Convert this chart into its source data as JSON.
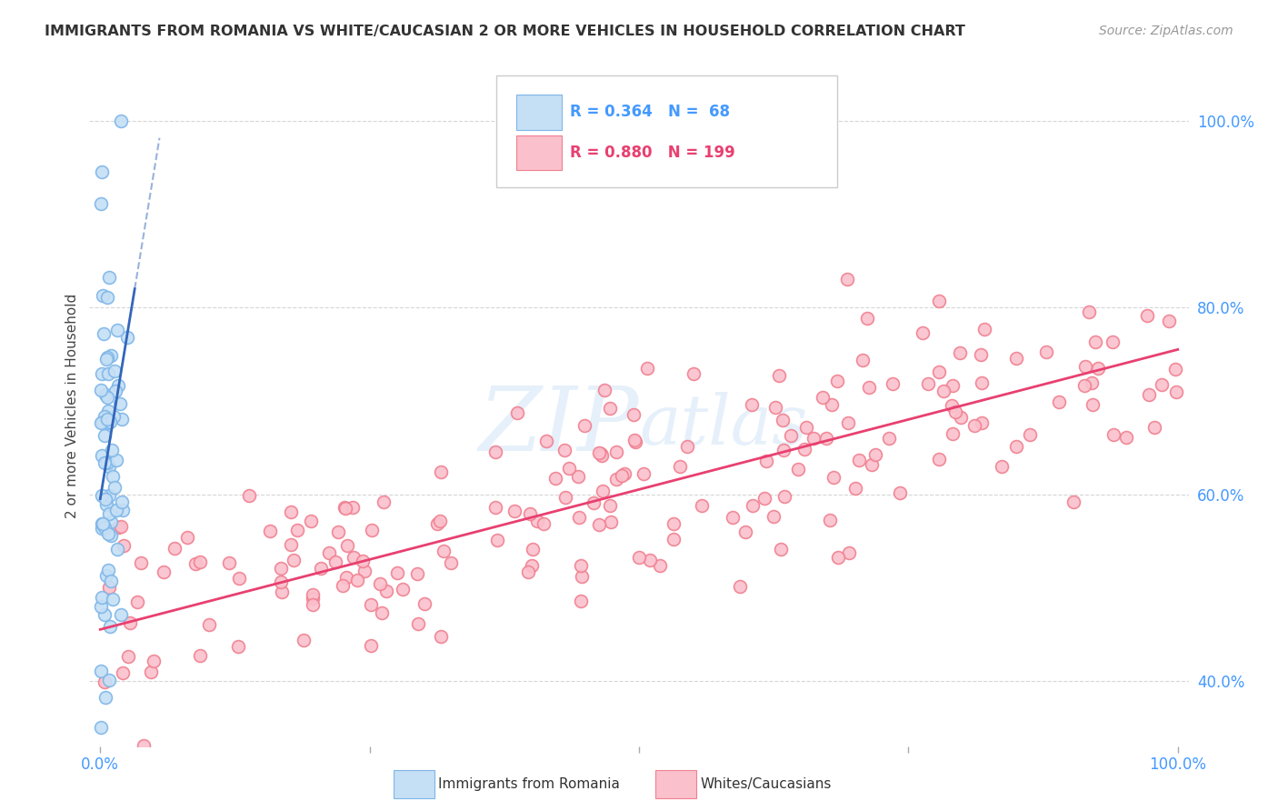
{
  "title": "IMMIGRANTS FROM ROMANIA VS WHITE/CAUCASIAN 2 OR MORE VEHICLES IN HOUSEHOLD CORRELATION CHART",
  "source": "Source: ZipAtlas.com",
  "ylabel": "2 or more Vehicles in Household",
  "watermark": "ZIPAtlas",
  "legend_blue_label": "Immigrants from Romania",
  "legend_pink_label": "Whites/Caucasians",
  "blue_R": 0.364,
  "blue_N": 68,
  "pink_R": 0.88,
  "pink_N": 199,
  "blue_color": "#7EB6E8",
  "blue_line_color": "#3366BB",
  "blue_fill_color": "#C5DFF5",
  "pink_color": "#F08090",
  "pink_line_color": "#E84070",
  "pink_fill_color": "#FAC0CC",
  "background_color": "#FFFFFF",
  "grid_color": "#CCCCCC",
  "title_color": "#333333",
  "axis_label_color": "#4499FF",
  "xlim": [
    0.0,
    1.0
  ],
  "ylim": [
    0.33,
    1.06
  ],
  "yticks": [
    0.4,
    0.6,
    0.8,
    1.0
  ],
  "ytick_labels": [
    "40.0%",
    "60.0%",
    "80.0%",
    "100.0%"
  ],
  "xticks": [
    0.0,
    0.25,
    0.5,
    0.75,
    1.0
  ],
  "xtick_labels_show": [
    "0.0%",
    "",
    "",
    "",
    "100.0%"
  ],
  "pink_line_x0": 0.0,
  "pink_line_y0": 0.455,
  "pink_line_x1": 1.0,
  "pink_line_y1": 0.755,
  "blue_line_x0": 0.0,
  "blue_line_y0": 0.595,
  "blue_line_x1": 0.032,
  "blue_line_y1": 0.82
}
